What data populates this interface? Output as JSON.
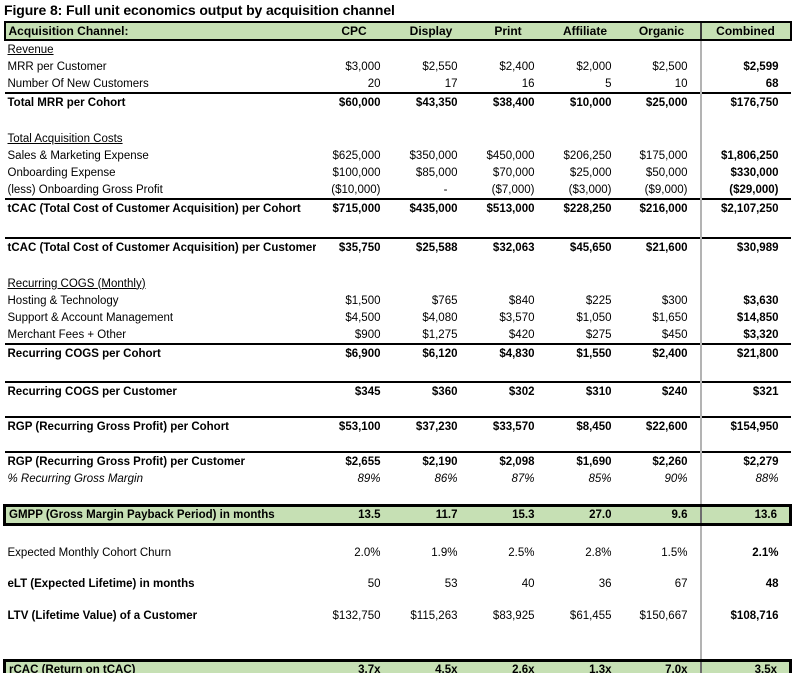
{
  "title": "Figure 8: Full unit economics output by acquisition channel",
  "accent_color": "#c6e0b4",
  "divider_color": "#b3b3b3",
  "table": {
    "columns": [
      "Acquisition Channel:",
      "CPC",
      "Display",
      "Print",
      "Affiliate",
      "Organic",
      "Combined"
    ],
    "rows": [
      {
        "type": "section",
        "label": "Revenue"
      },
      {
        "type": "data",
        "label": "MRR per Customer",
        "values": [
          "$3,000",
          "$2,550",
          "$2,400",
          "$2,000",
          "$2,500",
          "$2,599"
        ]
      },
      {
        "type": "data",
        "label": "Number Of New Customers",
        "values": [
          "20",
          "17",
          "16",
          "5",
          "10",
          "68"
        ]
      },
      {
        "type": "total",
        "label": "Total MRR per Cohort",
        "values": [
          "$60,000",
          "$43,350",
          "$38,400",
          "$10,000",
          "$25,000",
          "$176,750"
        ]
      },
      {
        "type": "spacer",
        "h": 19
      },
      {
        "type": "section",
        "label": "Total Acquisition Costs"
      },
      {
        "type": "data",
        "label": "Sales & Marketing Expense",
        "values": [
          "$625,000",
          "$350,000",
          "$450,000",
          "$206,250",
          "$175,000",
          "$1,806,250"
        ]
      },
      {
        "type": "data",
        "label": "Onboarding Expense",
        "values": [
          "$100,000",
          "$85,000",
          "$70,000",
          "$25,000",
          "$50,000",
          "$330,000"
        ]
      },
      {
        "type": "data",
        "label": "(less) Onboarding Gross Profit",
        "values": [
          "($10,000)",
          "-",
          "($7,000)",
          "($3,000)",
          "($9,000)",
          "($29,000)"
        ]
      },
      {
        "type": "total",
        "label": "tCAC (Total Cost of Customer Acquisition) per Cohort",
        "values": [
          "$715,000",
          "$435,000",
          "$513,000",
          "$228,250",
          "$216,000",
          "$2,107,250"
        ]
      },
      {
        "type": "spacer",
        "h": 20
      },
      {
        "type": "total",
        "label": "tCAC (Total Cost of Customer Acquisition) per Customer",
        "values": [
          "$35,750",
          "$25,588",
          "$32,063",
          "$45,650",
          "$21,600",
          "$30,989"
        ]
      },
      {
        "type": "spacer",
        "h": 19
      },
      {
        "type": "section",
        "label": "Recurring COGS (Monthly)"
      },
      {
        "type": "data",
        "label": "Hosting & Technology",
        "values": [
          "$1,500",
          "$765",
          "$840",
          "$225",
          "$300",
          "$3,630"
        ]
      },
      {
        "type": "data",
        "label": "Support & Account Management",
        "values": [
          "$4,500",
          "$4,080",
          "$3,570",
          "$1,050",
          "$1,650",
          "$14,850"
        ]
      },
      {
        "type": "data",
        "label": "Merchant Fees + Other",
        "values": [
          "$900",
          "$1,275",
          "$420",
          "$275",
          "$450",
          "$3,320"
        ]
      },
      {
        "type": "total",
        "label": "Recurring COGS per Cohort",
        "values": [
          "$6,900",
          "$6,120",
          "$4,830",
          "$1,550",
          "$2,400",
          "$21,800"
        ]
      },
      {
        "type": "spacer",
        "h": 19
      },
      {
        "type": "total",
        "label": "Recurring COGS per Customer",
        "values": [
          "$345",
          "$360",
          "$302",
          "$310",
          "$240",
          "$321"
        ]
      },
      {
        "type": "spacer",
        "h": 16
      },
      {
        "type": "total",
        "label": "RGP (Recurring Gross Profit) per Cohort",
        "values": [
          "$53,100",
          "$37,230",
          "$33,570",
          "$8,450",
          "$22,600",
          "$154,950"
        ]
      },
      {
        "type": "spacer",
        "h": 16
      },
      {
        "type": "total",
        "label": "RGP (Recurring Gross Profit) per Customer",
        "values": [
          "$2,655",
          "$2,190",
          "$2,098",
          "$1,690",
          "$2,260",
          "$2,279"
        ]
      },
      {
        "type": "italic",
        "label": "% Recurring Gross Margin",
        "values": [
          "89%",
          "86%",
          "87%",
          "85%",
          "90%",
          "88%"
        ]
      },
      {
        "type": "spacer",
        "h": 17
      },
      {
        "type": "highlight",
        "label": "GMPP (Gross Margin Payback Period) in months",
        "values": [
          "13.5",
          "11.7",
          "15.3",
          "27.0",
          "9.6",
          "13.6"
        ]
      },
      {
        "type": "spacer",
        "h": 18
      },
      {
        "type": "data",
        "label": "Expected Monthly Cohort Churn",
        "values": [
          "2.0%",
          "1.9%",
          "2.5%",
          "2.8%",
          "1.5%",
          "2.1%"
        ]
      },
      {
        "type": "spacer",
        "h": 14
      },
      {
        "type": "boldlabel",
        "label": "eLT (Expected Lifetime) in months",
        "values": [
          "50",
          "53",
          "40",
          "36",
          "67",
          "48"
        ]
      },
      {
        "type": "spacer",
        "h": 15
      },
      {
        "type": "boldlabel",
        "label": "LTV (Lifetime Value) of a Customer",
        "values": [
          "$132,750",
          "$115,263",
          "$83,925",
          "$61,455",
          "$150,667",
          "$108,716"
        ]
      },
      {
        "type": "spacer",
        "h": 35
      },
      {
        "type": "highlight",
        "label": "rCAC (Return on tCAC)",
        "values": [
          "3.7x",
          "4.5x",
          "2.6x",
          "1.3x",
          "7.0x",
          "3.5x"
        ]
      }
    ]
  }
}
